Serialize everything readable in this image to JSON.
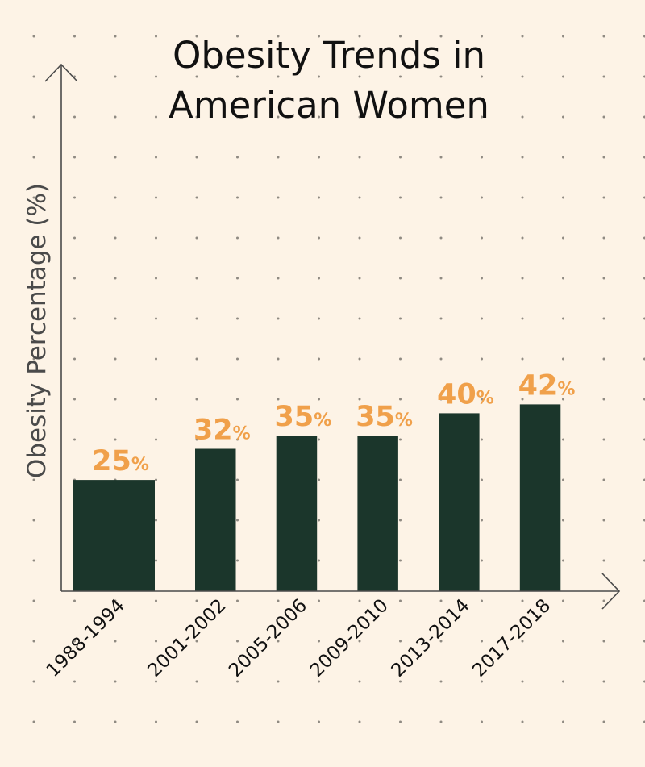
{
  "chart_data": {
    "type": "bar",
    "title": "Obesity Trends in American Women",
    "title_lines": [
      "Obesity Trends in",
      "American Women"
    ],
    "ylabel": "Obesity Percentage (%)",
    "xlabel": "",
    "categories": [
      "1988-1994",
      "2001-2002",
      "2005-2006",
      "2009-2010",
      "2013-2014",
      "2017-2018"
    ],
    "values": [
      25,
      32,
      35,
      35,
      40,
      42
    ],
    "value_labels": [
      "25",
      "32",
      "35",
      "35",
      "40",
      "42"
    ],
    "value_suffix": "%",
    "grid": "dotted background",
    "legend": "none"
  },
  "colors": {
    "background": "#fdf3e6",
    "bar": "#1b362b",
    "value_label": "#f0a04a",
    "axis": "#4a4a4a",
    "text": "#111111",
    "dots": "#8f8a82"
  }
}
